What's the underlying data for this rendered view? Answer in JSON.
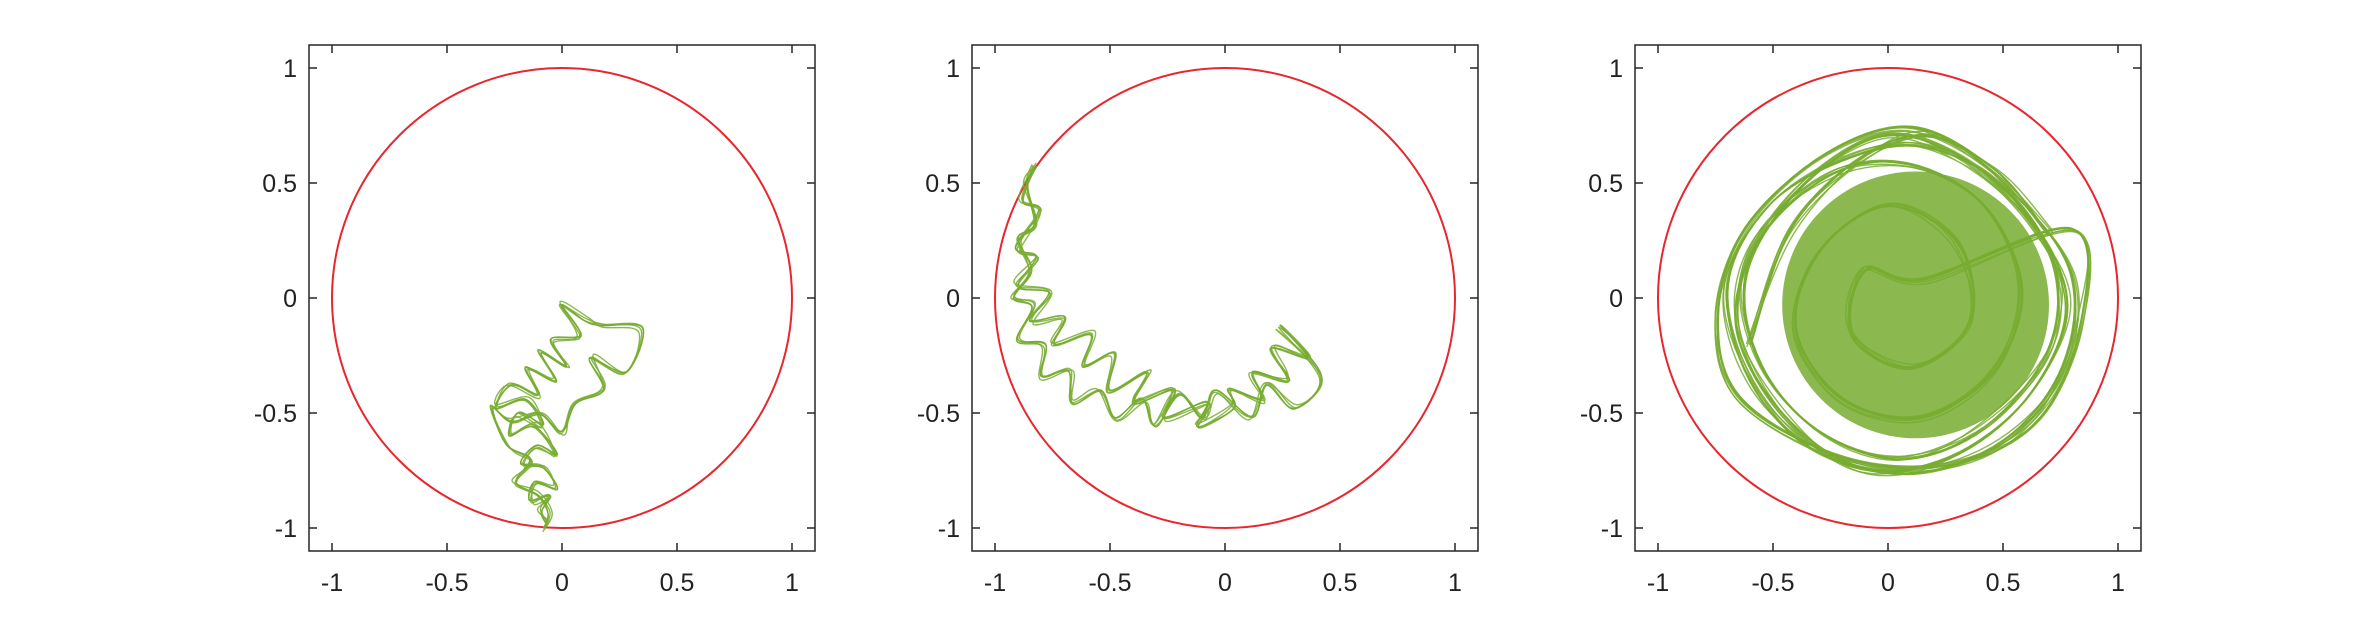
{
  "colors": {
    "circle": "#e8262d",
    "trajectory": "#77ac30",
    "axes": "#262626",
    "background": "#ffffff"
  },
  "chart_data": [
    {
      "type": "line",
      "title": "",
      "xlabel": "",
      "ylabel": "",
      "xlim": [
        -1.1,
        1.1
      ],
      "ylim": [
        -1.1,
        1.1
      ],
      "grid": false,
      "xticks": [
        -1,
        -0.5,
        0,
        0.5,
        1
      ],
      "yticks": [
        -1,
        -0.5,
        0,
        0.5,
        1
      ],
      "xtick_labels": [
        "-1",
        "-0.5",
        "0",
        "0.5",
        "1"
      ],
      "ytick_labels": [
        "-1",
        "-0.5",
        "0",
        "0.5",
        "1"
      ],
      "series": [
        {
          "kind": "unit-circle",
          "center": [
            0,
            0
          ],
          "radius": 1
        },
        {
          "kind": "trajectory",
          "points": [
            [
              -0.07,
              -0.98
            ],
            [
              -0.09,
              -0.93
            ],
            [
              -0.05,
              -0.86
            ],
            [
              -0.14,
              -0.88
            ],
            [
              -0.12,
              -0.8
            ],
            [
              -0.02,
              -0.83
            ],
            [
              -0.08,
              -0.74
            ],
            [
              -0.18,
              -0.72
            ],
            [
              -0.11,
              -0.64
            ],
            [
              -0.02,
              -0.68
            ],
            [
              -0.12,
              -0.56
            ],
            [
              -0.23,
              -0.6
            ],
            [
              -0.19,
              -0.5
            ],
            [
              -0.08,
              -0.55
            ],
            [
              -0.16,
              -0.44
            ],
            [
              -0.29,
              -0.48
            ],
            [
              -0.22,
              -0.38
            ],
            [
              -0.1,
              -0.42
            ],
            [
              -0.16,
              -0.3
            ],
            [
              -0.03,
              -0.36
            ],
            [
              -0.09,
              -0.24
            ],
            [
              0.02,
              -0.3
            ],
            [
              -0.05,
              -0.18
            ],
            [
              0.08,
              -0.16
            ],
            [
              0.0,
              -0.03
            ],
            [
              0.1,
              -0.1
            ],
            [
              0.17,
              -0.12
            ],
            [
              0.35,
              -0.13
            ],
            [
              0.28,
              -0.32
            ],
            [
              0.12,
              -0.26
            ],
            [
              0.18,
              -0.4
            ],
            [
              0.06,
              -0.46
            ],
            [
              0.0,
              -0.58
            ],
            [
              -0.1,
              -0.5
            ],
            [
              -0.22,
              -0.54
            ],
            [
              -0.3,
              -0.48
            ],
            [
              -0.24,
              -0.64
            ],
            [
              -0.14,
              -0.7
            ],
            [
              -0.2,
              -0.8
            ],
            [
              -0.1,
              -0.86
            ],
            [
              -0.06,
              -0.94
            ],
            [
              -0.08,
              -1.0
            ]
          ]
        }
      ]
    },
    {
      "type": "line",
      "title": "",
      "xlabel": "",
      "ylabel": "",
      "xlim": [
        -1.1,
        1.1
      ],
      "ylim": [
        -1.1,
        1.1
      ],
      "grid": false,
      "xticks": [
        -1,
        -0.5,
        0,
        0.5,
        1
      ],
      "yticks": [
        -1,
        -0.5,
        0,
        0.5,
        1
      ],
      "xtick_labels": [
        "-1",
        "-0.5",
        "0",
        "0.5",
        "1"
      ],
      "ytick_labels": [
        "-1",
        "-0.5",
        "0",
        "0.5",
        "1"
      ],
      "series": [
        {
          "kind": "unit-circle",
          "center": [
            0,
            0
          ],
          "radius": 1
        },
        {
          "kind": "trajectory",
          "points": [
            [
              -0.83,
              0.57
            ],
            [
              -0.88,
              0.42
            ],
            [
              -0.8,
              0.38
            ],
            [
              -0.91,
              0.22
            ],
            [
              -0.82,
              0.18
            ],
            [
              -0.9,
              0.05
            ],
            [
              -0.76,
              0.02
            ],
            [
              -0.85,
              -0.1
            ],
            [
              -0.7,
              -0.08
            ],
            [
              -0.74,
              -0.2
            ],
            [
              -0.58,
              -0.16
            ],
            [
              -0.62,
              -0.3
            ],
            [
              -0.48,
              -0.24
            ],
            [
              -0.5,
              -0.4
            ],
            [
              -0.34,
              -0.32
            ],
            [
              -0.4,
              -0.46
            ],
            [
              -0.22,
              -0.4
            ],
            [
              -0.26,
              -0.52
            ],
            [
              -0.08,
              -0.45
            ],
            [
              -0.12,
              -0.56
            ],
            [
              0.04,
              -0.48
            ],
            [
              0.02,
              -0.4
            ],
            [
              0.16,
              -0.44
            ],
            [
              0.12,
              -0.32
            ],
            [
              0.28,
              -0.36
            ],
            [
              0.2,
              -0.22
            ],
            [
              0.36,
              -0.26
            ],
            [
              0.24,
              -0.12
            ],
            [
              0.42,
              -0.34
            ],
            [
              0.3,
              -0.48
            ],
            [
              0.18,
              -0.38
            ],
            [
              0.12,
              -0.52
            ],
            [
              -0.04,
              -0.4
            ],
            [
              -0.1,
              -0.52
            ],
            [
              -0.2,
              -0.42
            ],
            [
              -0.3,
              -0.56
            ],
            [
              -0.36,
              -0.44
            ],
            [
              -0.48,
              -0.52
            ],
            [
              -0.54,
              -0.4
            ],
            [
              -0.66,
              -0.46
            ],
            [
              -0.68,
              -0.32
            ],
            [
              -0.8,
              -0.34
            ],
            [
              -0.78,
              -0.2
            ],
            [
              -0.9,
              -0.18
            ],
            [
              -0.84,
              -0.04
            ],
            [
              -0.92,
              0.0
            ],
            [
              -0.84,
              0.12
            ],
            [
              -0.9,
              0.26
            ],
            [
              -0.83,
              0.32
            ],
            [
              -0.86,
              0.48
            ],
            [
              -0.83,
              0.57
            ]
          ]
        }
      ]
    },
    {
      "type": "line",
      "title": "",
      "xlabel": "",
      "ylabel": "",
      "xlim": [
        -1.1,
        1.1
      ],
      "ylim": [
        -1.1,
        1.1
      ],
      "grid": false,
      "xticks": [
        -1,
        -0.5,
        0,
        0.5,
        1
      ],
      "yticks": [
        -1,
        -0.5,
        0,
        0.5,
        1
      ],
      "xtick_labels": [
        "-1",
        "-0.5",
        "0",
        "0.5",
        "1"
      ],
      "ytick_labels": [
        "-1",
        "-0.5",
        "0",
        "0.5",
        "1"
      ],
      "series": [
        {
          "kind": "unit-circle",
          "center": [
            0,
            0
          ],
          "radius": 1
        },
        {
          "kind": "trajectory",
          "points": [
            [
              -0.6,
              -0.2
            ],
            [
              -0.42,
              0.3
            ],
            [
              -0.1,
              0.62
            ],
            [
              0.22,
              0.7
            ],
            [
              0.55,
              0.45
            ],
            [
              0.8,
              0.1
            ],
            [
              0.76,
              -0.3
            ],
            [
              0.5,
              -0.62
            ],
            [
              0.1,
              -0.76
            ],
            [
              -0.32,
              -0.66
            ],
            [
              -0.6,
              -0.36
            ],
            [
              -0.7,
              0.05
            ],
            [
              -0.52,
              0.4
            ],
            [
              -0.2,
              0.6
            ],
            [
              0.14,
              0.66
            ],
            [
              0.48,
              0.5
            ],
            [
              0.72,
              0.16
            ],
            [
              0.7,
              -0.22
            ],
            [
              0.42,
              -0.56
            ],
            [
              0.06,
              -0.7
            ],
            [
              -0.3,
              -0.58
            ],
            [
              -0.56,
              -0.28
            ],
            [
              -0.62,
              0.1
            ],
            [
              -0.4,
              0.46
            ],
            [
              -0.04,
              0.7
            ],
            [
              0.3,
              0.62
            ],
            [
              0.62,
              0.34
            ],
            [
              0.78,
              -0.04
            ],
            [
              0.6,
              -0.44
            ],
            [
              0.26,
              -0.7
            ],
            [
              -0.12,
              -0.74
            ],
            [
              -0.46,
              -0.5
            ],
            [
              -0.66,
              -0.12
            ],
            [
              -0.56,
              0.26
            ],
            [
              -0.24,
              0.54
            ],
            [
              0.1,
              0.58
            ],
            [
              0.42,
              0.4
            ],
            [
              0.58,
              0.04
            ],
            [
              0.46,
              -0.32
            ],
            [
              0.14,
              -0.52
            ],
            [
              -0.2,
              -0.44
            ],
            [
              -0.4,
              -0.14
            ],
            [
              -0.3,
              0.2
            ],
            [
              0.0,
              0.4
            ],
            [
              0.3,
              0.24
            ],
            [
              0.36,
              -0.1
            ],
            [
              0.1,
              -0.3
            ],
            [
              -0.16,
              -0.16
            ],
            [
              -0.1,
              0.12
            ],
            [
              0.16,
              0.08
            ],
            [
              0.8,
              0.3
            ],
            [
              0.84,
              -0.1
            ],
            [
              0.66,
              -0.52
            ],
            [
              0.3,
              -0.72
            ],
            [
              -0.18,
              -0.7
            ],
            [
              -0.64,
              -0.44
            ],
            [
              -0.74,
              -0.08
            ],
            [
              -0.62,
              0.3
            ],
            [
              -0.28,
              0.62
            ],
            [
              0.1,
              0.74
            ],
            [
              0.46,
              0.56
            ],
            [
              0.7,
              0.28
            ]
          ]
        }
      ]
    }
  ]
}
